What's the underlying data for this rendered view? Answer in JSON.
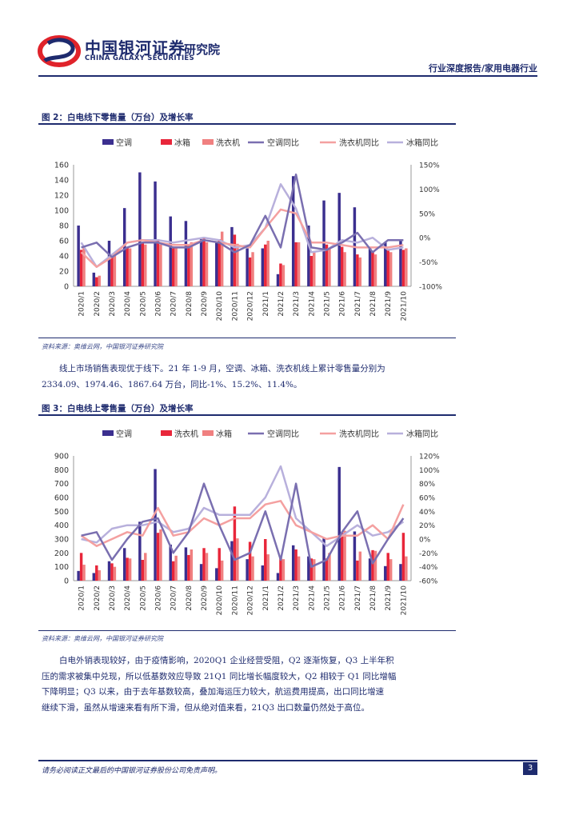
{
  "header": {
    "brand_cn": "中国银河证券",
    "brand_sub": "研究院",
    "brand_en": "CHINA GALAXY SECURITIES",
    "report_type": "行业深度报告/家用电器行业",
    "colors": {
      "primary": "#1e2b6e",
      "accent": "#e0232b"
    }
  },
  "figure2": {
    "title": "图 2：白电线下零售量（万台）及增长率",
    "source": "资料来源：奥维云网，中国银河证券研究院"
  },
  "paragraph1": {
    "lines": [
      "线上市场销售表现优于线下。21 年 1-9 月，空调、冰箱、洗衣机线上累计零售量分别为",
      "2334.09、1974.46、1867.64 万台，同比-1%、15.2%、11.4%。"
    ]
  },
  "figure3": {
    "title": "图 3：白电线上零售量（万台）及增长率",
    "source": "资料来源：奥维云网，中国银河证券研究院"
  },
  "paragraph2": {
    "lines": [
      "白电外销表现较好，由于疫情影响，2020Q1 企业经营受阻，Q2 逐渐恢复，Q3 上半年积",
      "压的需求被集中兑现，所以低基数效应导致 21Q1 同比增长幅度较大，Q2 相较于 Q1 同比增幅",
      "下降明显；Q3 以来，由于去年基数较高，叠加海运压力较大，航运费用提高，出口同比增速",
      "继续下滑，虽然从增速来看有所下滑，但从绝对值来看，21Q3 出口数量仍然处于高位。"
    ]
  },
  "footer": {
    "disclaimer": "请务必阅读正文最后的中国银河证券股份公司免责声明。",
    "page": "3"
  },
  "chart_data": [
    {
      "type": "bar",
      "categories": [
        "2020/1",
        "2020/2",
        "2020/3",
        "2020/4",
        "2020/5",
        "2020/6",
        "2020/7",
        "2020/8",
        "2020/9",
        "2020/10",
        "2020/11",
        "2020/12",
        "2021/1",
        "2021/2",
        "2021/3",
        "2021/4",
        "2021/5",
        "2021/6",
        "2021/7",
        "2021/8",
        "2021/9",
        "2021/10"
      ],
      "ylim": [
        0,
        160
      ],
      "yticks": [
        0,
        20,
        40,
        60,
        80,
        100,
        120,
        140,
        160
      ],
      "y2lim": [
        -100,
        150
      ],
      "y2ticks": [
        "-100%",
        "-50%",
        "0%",
        "50%",
        "100%",
        "150%"
      ],
      "y2values": [
        -100,
        -50,
        0,
        50,
        100,
        150
      ],
      "legend_position": "top",
      "series": [
        {
          "name": "空调",
          "kind": "bar",
          "color": "#3b2f8f",
          "values": [
            80,
            18,
            60,
            103,
            150,
            138,
            92,
            86,
            62,
            58,
            78,
            50,
            50,
            16,
            145,
            80,
            113,
            123,
            104,
            52,
            58,
            60
          ]
        },
        {
          "name": "冰箱",
          "kind": "bar",
          "color": "#e8263a",
          "values": [
            48,
            12,
            40,
            52,
            58,
            62,
            50,
            55,
            64,
            62,
            68,
            38,
            55,
            30,
            58,
            40,
            55,
            52,
            42,
            45,
            48,
            48
          ]
        },
        {
          "name": "洗衣机",
          "kind": "bar",
          "color": "#f08080",
          "values": [
            52,
            14,
            44,
            50,
            55,
            55,
            52,
            58,
            58,
            72,
            56,
            45,
            60,
            28,
            58,
            45,
            50,
            45,
            38,
            42,
            45,
            50
          ]
        },
        {
          "name": "空调同比",
          "kind": "line",
          "color": "#7a6fb0",
          "values": [
            -20,
            -10,
            -40,
            -20,
            -10,
            -10,
            -20,
            -20,
            -5,
            -10,
            -30,
            -15,
            45,
            -20,
            130,
            -20,
            -25,
            -10,
            10,
            -30,
            -5,
            -5
          ]
        },
        {
          "name": "洗衣机同比",
          "kind": "line",
          "color": "#f4a0a0",
          "values": [
            -30,
            -60,
            -40,
            -10,
            -5,
            -10,
            -15,
            -15,
            -5,
            -10,
            -15,
            -20,
            20,
            58,
            50,
            -10,
            -10,
            -15,
            -20,
            -20,
            -20,
            -15
          ]
        },
        {
          "name": "冰箱同比",
          "kind": "line",
          "color": "#b8b0dc",
          "values": [
            -10,
            -60,
            -35,
            -10,
            -5,
            -5,
            -10,
            -5,
            0,
            -5,
            -20,
            -15,
            20,
            110,
            60,
            -30,
            -25,
            -5,
            -10,
            0,
            -25,
            -20
          ]
        }
      ]
    },
    {
      "type": "bar",
      "categories": [
        "2020/1",
        "2020/2",
        "2020/3",
        "2020/4",
        "2020/5",
        "2020/6",
        "2020/7",
        "2020/8",
        "2020/9",
        "2020/10",
        "2020/11",
        "2020/12",
        "2021/1",
        "2021/2",
        "2021/3",
        "2021/4",
        "2021/5",
        "2021/6",
        "2021/7",
        "2021/8",
        "2021/9",
        "2021/10"
      ],
      "ylim": [
        0,
        900
      ],
      "yticks": [
        0,
        100,
        200,
        300,
        400,
        500,
        600,
        700,
        800,
        900
      ],
      "y2lim": [
        -60,
        120
      ],
      "y2ticks": [
        "-60%",
        "-40%",
        "-20%",
        "0%",
        "20%",
        "40%",
        "60%",
        "80%",
        "100%",
        "120%"
      ],
      "y2values": [
        -60,
        -40,
        -20,
        0,
        20,
        40,
        60,
        80,
        100,
        120
      ],
      "legend_position": "top",
      "series": [
        {
          "name": "空调",
          "kind": "bar",
          "color": "#3b2f8f",
          "values": [
            70,
            55,
            140,
            235,
            425,
            805,
            260,
            240,
            120,
            90,
            285,
            155,
            110,
            55,
            255,
            175,
            305,
            820,
            355,
            160,
            105,
            120
          ]
        },
        {
          "name": "洗衣机",
          "kind": "bar",
          "color": "#e8263a",
          "values": [
            200,
            110,
            125,
            165,
            150,
            345,
            140,
            185,
            235,
            235,
            535,
            280,
            300,
            165,
            225,
            160,
            160,
            345,
            145,
            220,
            200,
            345
          ]
        },
        {
          "name": "冰箱",
          "kind": "bar",
          "color": "#f08080",
          "values": [
            115,
            75,
            100,
            160,
            200,
            370,
            180,
            225,
            200,
            145,
            305,
            175,
            190,
            155,
            175,
            155,
            200,
            360,
            210,
            215,
            155,
            175
          ]
        },
        {
          "name": "空调同比",
          "kind": "line",
          "color": "#7a6fb0",
          "values": [
            5,
            10,
            -30,
            0,
            25,
            30,
            -20,
            10,
            80,
            20,
            -30,
            -20,
            40,
            -30,
            80,
            -40,
            -30,
            10,
            40,
            -35,
            0,
            30
          ]
        },
        {
          "name": "洗衣机同比",
          "kind": "line",
          "color": "#f4a0a0",
          "values": [
            5,
            -10,
            0,
            10,
            5,
            45,
            5,
            10,
            30,
            20,
            30,
            30,
            50,
            55,
            20,
            10,
            0,
            5,
            5,
            20,
            0,
            50
          ]
        },
        {
          "name": "冰箱同比",
          "kind": "line",
          "color": "#b8b0dc",
          "values": [
            0,
            -5,
            15,
            20,
            20,
            25,
            10,
            15,
            45,
            35,
            35,
            35,
            60,
            105,
            30,
            10,
            -10,
            5,
            20,
            5,
            10,
            25
          ]
        }
      ]
    }
  ]
}
